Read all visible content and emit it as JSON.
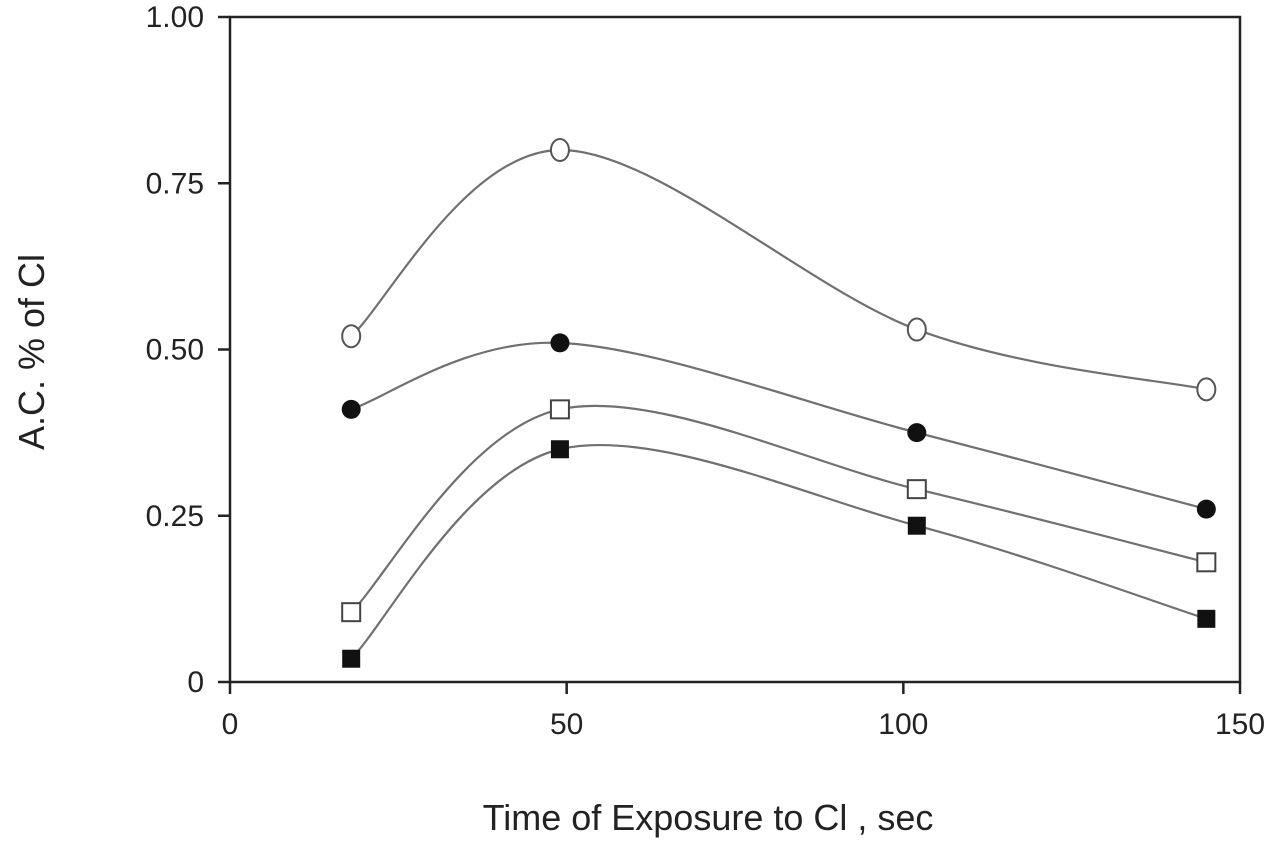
{
  "chart_data": {
    "type": "line",
    "xlabel": "Time of Exposure to Cl   , sec",
    "ylabel": "A.C. % of Cl",
    "xlim": [
      0,
      150
    ],
    "ylim": [
      0,
      1.0
    ],
    "x_ticks": [
      0,
      50,
      100,
      150
    ],
    "x_tick_labels": [
      "0",
      "50",
      "100",
      "150"
    ],
    "y_ticks": [
      0,
      0.25,
      0.5,
      0.75,
      1.0
    ],
    "y_tick_labels": [
      "0",
      "0.25",
      "0.50",
      "0.75",
      "1.00"
    ],
    "grid": false,
    "legend": "none",
    "colors": {
      "axis": "#222222",
      "curve": "#707070",
      "marker": "#111111"
    },
    "series": [
      {
        "marker": "open-circle",
        "x": [
          18,
          49,
          102,
          145
        ],
        "y": [
          0.52,
          0.8,
          0.53,
          0.44
        ]
      },
      {
        "marker": "filled-circle",
        "x": [
          18,
          49,
          102,
          145
        ],
        "y": [
          0.41,
          0.51,
          0.375,
          0.26
        ]
      },
      {
        "marker": "open-square",
        "x": [
          18,
          49,
          102,
          145
        ],
        "y": [
          0.105,
          0.41,
          0.29,
          0.18
        ]
      },
      {
        "marker": "filled-square",
        "x": [
          18,
          49,
          102,
          145
        ],
        "y": [
          0.035,
          0.35,
          0.235,
          0.095
        ]
      }
    ]
  }
}
